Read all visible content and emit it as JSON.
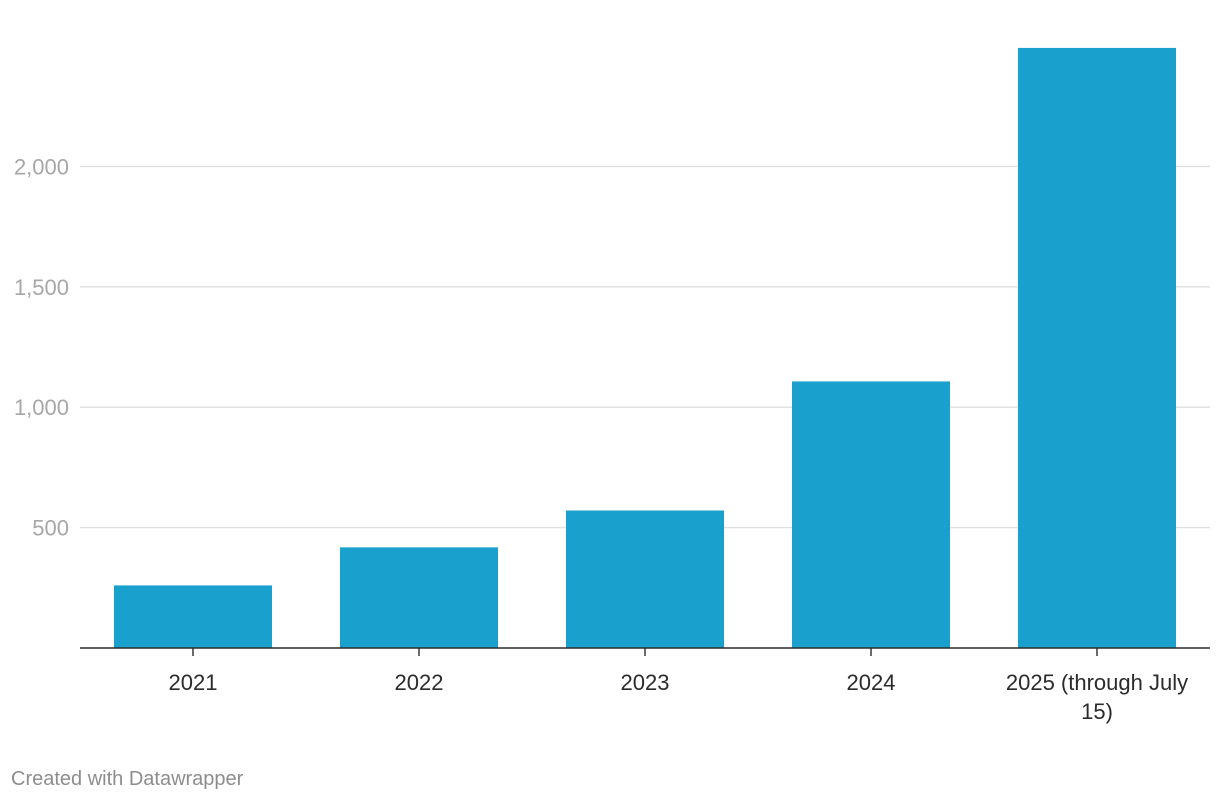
{
  "chart_data": {
    "type": "bar",
    "title": "",
    "xlabel": "",
    "ylabel": "",
    "categories": [
      "2021",
      "2022",
      "2023",
      "2024",
      "2025 (through July 15)"
    ],
    "category_label_lines": [
      [
        "2021"
      ],
      [
        "2022"
      ],
      [
        "2023"
      ],
      [
        "2024"
      ],
      [
        "2025 (through July",
        "15)"
      ]
    ],
    "values": [
      260,
      418,
      571,
      1107,
      2492
    ],
    "ylim": [
      0,
      2500
    ],
    "yticks": [
      500,
      1000,
      1500,
      2000
    ],
    "ytick_labels": [
      "500",
      "1,000",
      "1,500",
      "2,000"
    ],
    "grid": true,
    "legend": "none",
    "bar_color": "#19a0cd"
  },
  "footer": {
    "credit": "Created with Datawrapper"
  }
}
